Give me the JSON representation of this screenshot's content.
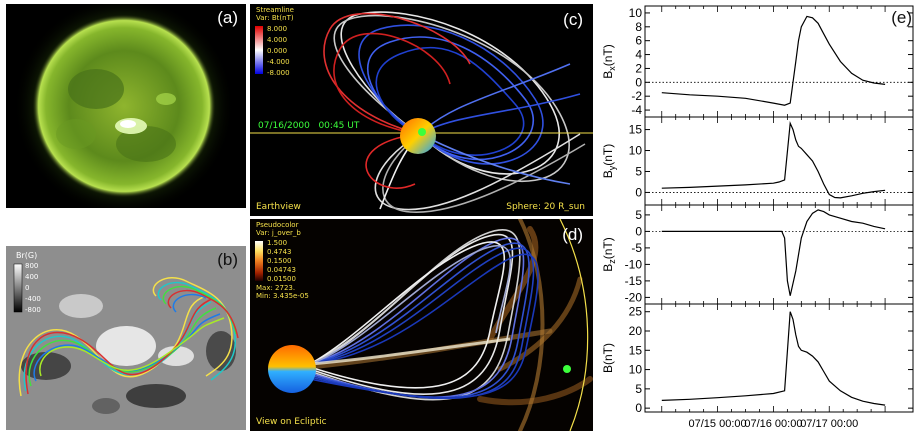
{
  "panels": {
    "a": {
      "label": "(a)"
    },
    "b": {
      "label": "(b)",
      "colorbar_title": "Br(G)",
      "colorbar_ticks": [
        "800",
        "400",
        "0",
        "-400",
        "-800"
      ]
    },
    "c": {
      "label": "(c)",
      "legend_title": "Streamline",
      "legend_var": "Var: Bt(nT)",
      "legend_ticks": [
        "8.000",
        "4.000",
        "0.000",
        "-4.000",
        "-8.000"
      ],
      "datetime": "07/16/2000   00:45 UT",
      "view_label": "Earthview",
      "sphere_label": "Sphere: 20 R_sun"
    },
    "d": {
      "label": "(d)",
      "legend_title": "Pseudocolor",
      "legend_var": "Var: j_over_b",
      "legend_ticks": [
        "1.500",
        "0.4743",
        "0.1500",
        "0.04743",
        "0.01500"
      ],
      "legend_max": "Max:  2723.",
      "legend_min": "Min:  3.435e-05",
      "view_label": "View on Ecliptic"
    },
    "e": {
      "label": "(e)"
    }
  },
  "chart_data": [
    {
      "type": "line",
      "ylabel": "Bx(nT)",
      "ylim": [
        -5,
        11
      ],
      "yticks": [
        "10",
        "8",
        "6",
        "4",
        "2",
        "0",
        "-2",
        "-4"
      ],
      "zero_line": true,
      "x": [
        0,
        0.5,
        1,
        1.5,
        2,
        2.2,
        2.3,
        2.35,
        2.4,
        2.45,
        2.5,
        2.6,
        2.7,
        2.8,
        2.9,
        3.0,
        3.2,
        3.4,
        3.6,
        3.8,
        4.0
      ],
      "values": [
        -1.5,
        -1.8,
        -2.0,
        -2.3,
        -3.0,
        -3.3,
        -3.0,
        0.0,
        3.0,
        6.0,
        8.0,
        9.5,
        9.3,
        8.5,
        7.0,
        5.5,
        3.0,
        1.3,
        0.3,
        -0.1,
        -0.3
      ]
    },
    {
      "type": "line",
      "ylabel": "By(nT)",
      "ylim": [
        -3,
        18
      ],
      "yticks": [
        "15",
        "10",
        "5",
        "0"
      ],
      "zero_line": true,
      "x": [
        0,
        0.5,
        1,
        1.5,
        2,
        2.1,
        2.2,
        2.3,
        2.35,
        2.4,
        2.45,
        2.5,
        2.6,
        2.7,
        2.8,
        2.9,
        3.0,
        3.1,
        3.2,
        3.4,
        3.6,
        3.8,
        4.0
      ],
      "values": [
        1.0,
        1.2,
        1.5,
        1.8,
        2.2,
        2.5,
        3.0,
        16.5,
        15.0,
        12.5,
        11.0,
        10.5,
        9.0,
        7.5,
        5.0,
        2.0,
        -0.5,
        -1.2,
        -1.3,
        -0.8,
        -0.2,
        0.2,
        0.5
      ]
    },
    {
      "type": "line",
      "ylabel": "Bz(nT)",
      "ylim": [
        -22,
        8
      ],
      "yticks": [
        "5",
        "0",
        "-5",
        "-10",
        "-15",
        "-20"
      ],
      "zero_line": true,
      "x": [
        0,
        0.5,
        1,
        1.5,
        2,
        2.15,
        2.2,
        2.25,
        2.3,
        2.4,
        2.5,
        2.6,
        2.7,
        2.8,
        2.9,
        3.0,
        3.2,
        3.4,
        3.6,
        3.8,
        4.0
      ],
      "values": [
        0,
        0,
        0,
        0,
        0,
        0,
        -2,
        -15,
        -19.5,
        -12,
        -2,
        3,
        5.5,
        6.5,
        6,
        5,
        4,
        3,
        2.5,
        1.5,
        0.8
      ]
    },
    {
      "type": "line",
      "ylabel": "B(nT)",
      "ylim": [
        -1,
        27
      ],
      "yticks": [
        "25",
        "20",
        "15",
        "10",
        "5",
        "0"
      ],
      "zero_line": false,
      "x": [
        0,
        0.5,
        1,
        1.5,
        2,
        2.2,
        2.3,
        2.35,
        2.4,
        2.45,
        2.5,
        2.6,
        2.7,
        2.8,
        2.9,
        3.0,
        3.2,
        3.4,
        3.6,
        3.8,
        4.0
      ],
      "values": [
        2.0,
        2.3,
        2.7,
        3.2,
        3.8,
        4.5,
        25.0,
        23.0,
        19.0,
        16.0,
        15.0,
        14.5,
        13.5,
        12.0,
        9.5,
        7.0,
        4.5,
        2.8,
        1.8,
        1.2,
        0.8
      ],
      "xticks": [
        "07/15 00:00",
        "07/16 00:00",
        "07/17 00:00"
      ],
      "xtick_positions": [
        1,
        2,
        3
      ]
    }
  ]
}
